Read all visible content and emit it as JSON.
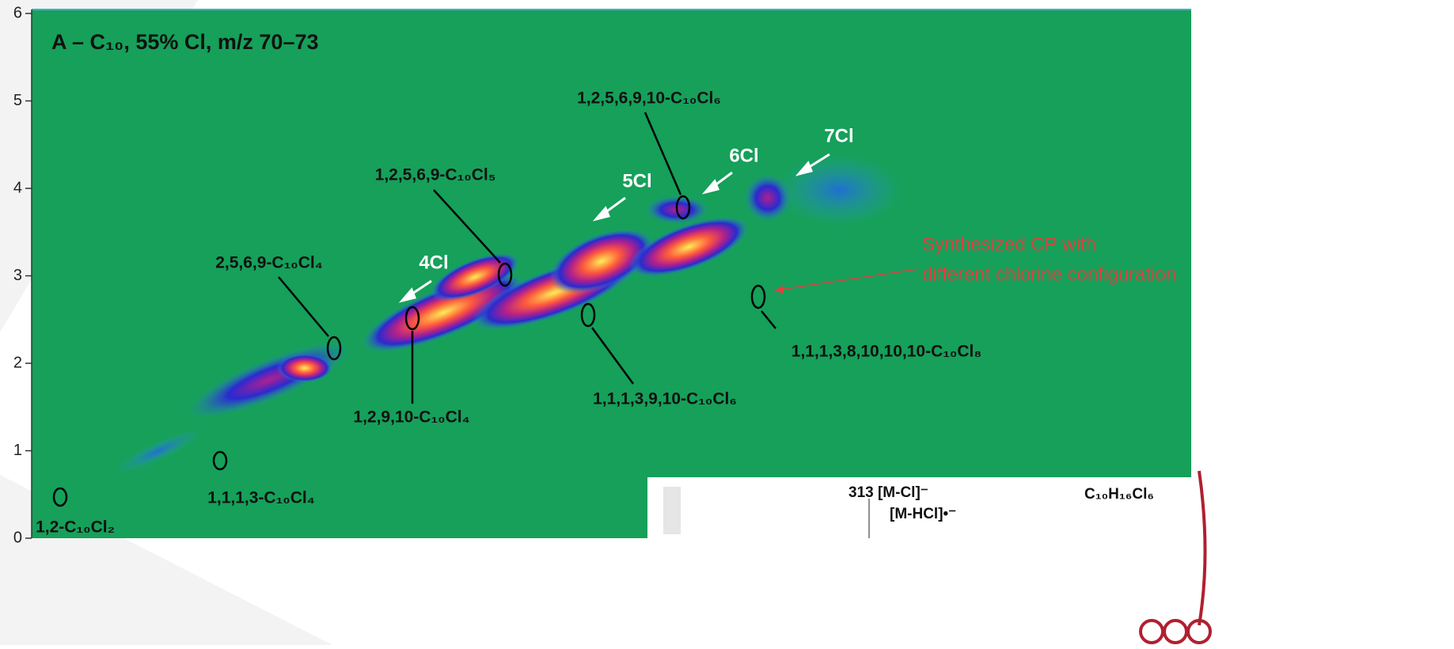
{
  "plot": {
    "title": "A – C₁₀, 55% Cl, m/z 70–73",
    "yticks": [
      0,
      1,
      2,
      3,
      4,
      5,
      6
    ],
    "peak_labels": [
      "1,2,5,6,9,10-C₁₀Cl₆",
      "1,2,5,6,9-C₁₀Cl₅",
      "2,5,6,9-C₁₀Cl₄",
      "1,2,9,10-C₁₀Cl₄",
      "1,1,1,3,9,10-C₁₀Cl₆",
      "1,1,1,3,8,10,10,10-C₁₀Cl₈",
      "1,1,1,3-C₁₀Cl₄",
      "1,2-C₁₀Cl₂"
    ],
    "chlorine_labels": [
      "4Cl",
      "5Cl",
      "6Cl",
      "7Cl"
    ]
  },
  "callout": [
    "Synthesized CP with",
    "different chlorine configuration"
  ],
  "inset": {
    "ion1": "313 [M-Cl]⁻",
    "ion2": "[M-HCl]•⁻",
    "formula": "C₁₀H₁₆Cl₆"
  }
}
